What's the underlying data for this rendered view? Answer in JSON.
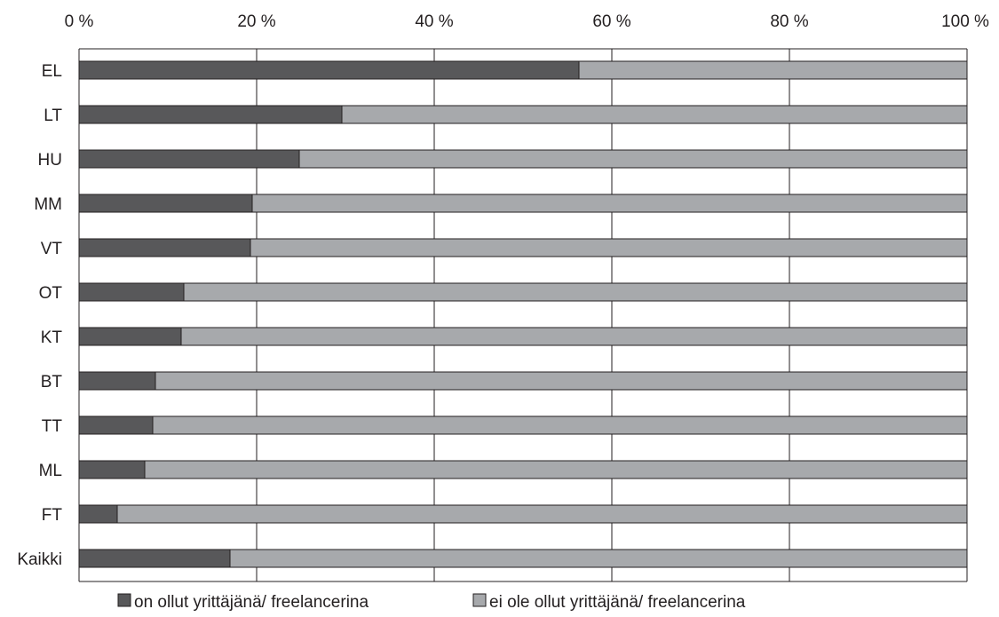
{
  "chart_data": {
    "type": "bar",
    "orientation": "horizontal",
    "stacked": true,
    "percent_stacked": true,
    "categories": [
      "EL",
      "LT",
      "HU",
      "MM",
      "VT",
      "OT",
      "KT",
      "BT",
      "TT",
      "ML",
      "FT",
      "Kaikki"
    ],
    "series": [
      {
        "name": "on ollut yrittäjänä/ freelancerina",
        "color": "#58585a",
        "values": [
          56.3,
          29.6,
          24.8,
          19.5,
          19.3,
          11.8,
          11.5,
          8.6,
          8.3,
          7.4,
          4.3,
          17.0
        ]
      },
      {
        "name": "ei ole ollut yrittäjänä/ freelancerina",
        "color": "#a7a9ac",
        "values": [
          43.7,
          70.4,
          75.2,
          80.5,
          80.7,
          88.2,
          88.5,
          91.4,
          91.7,
          92.6,
          95.7,
          83.0
        ]
      }
    ],
    "xlim": [
      0,
      100
    ],
    "x_ticks": [
      0,
      20,
      40,
      60,
      80,
      100
    ],
    "x_tick_labels": [
      "0 %",
      "20 %",
      "40 %",
      "60 %",
      "80 %",
      "100 %"
    ],
    "x_axis_position": "top",
    "grid": true,
    "legend_position": "bottom",
    "title": "",
    "xlabel": "",
    "ylabel": ""
  }
}
